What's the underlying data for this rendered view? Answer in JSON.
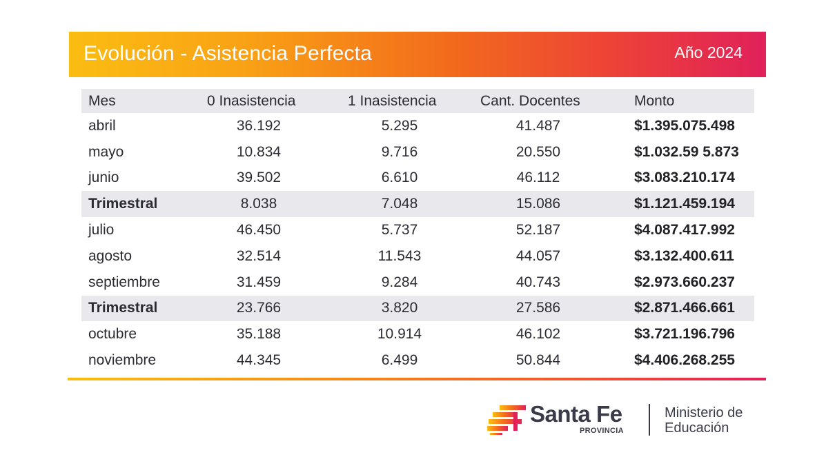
{
  "header": {
    "title": "Evolución - Asistencia Perfecta",
    "year": "Año 2024"
  },
  "table": {
    "columns": [
      "Mes",
      "0 Inasistencia",
      "1 Inasistencia",
      "Cant. Docentes",
      "Monto"
    ],
    "rows": [
      {
        "mes": "abril",
        "cero": "36.192",
        "uno": "5.295",
        "cant": "41.487",
        "monto": "$1.395.075.498",
        "shaded": false
      },
      {
        "mes": "mayo",
        "cero": "10.834",
        "uno": "9.716",
        "cant": "20.550",
        "monto": "$1.032.59 5.873",
        "shaded": false
      },
      {
        "mes": "junio",
        "cero": "39.502",
        "uno": "6.610",
        "cant": "46.112",
        "monto": "$3.083.210.174",
        "shaded": false
      },
      {
        "mes": "Trimestral",
        "cero": "8.038",
        "uno": "7.048",
        "cant": "15.086",
        "monto": "$1.121.459.194",
        "shaded": true
      },
      {
        "mes": "julio",
        "cero": "46.450",
        "uno": "5.737",
        "cant": "52.187",
        "monto": "$4.087.417.992",
        "shaded": false
      },
      {
        "mes": "agosto",
        "cero": "32.514",
        "uno": "11.543",
        "cant": "44.057",
        "monto": "$3.132.400.611",
        "shaded": false
      },
      {
        "mes": "septiembre",
        "cero": "31.459",
        "uno": "9.284",
        "cant": "40.743",
        "monto": "$2.973.660.237",
        "shaded": false
      },
      {
        "mes": "Trimestral",
        "cero": "23.766",
        "uno": "3.820",
        "cant": "27.586",
        "monto": "$2.871.466.661",
        "shaded": true
      },
      {
        "mes": "octubre",
        "cero": "35.188",
        "uno": "10.914",
        "cant": "46.102",
        "monto": "$3.721.196.796",
        "shaded": false
      },
      {
        "mes": "noviembre",
        "cero": "44.345",
        "uno": "6.499",
        "cant": "50.844",
        "monto": "$4.406.268.255",
        "shaded": false
      }
    ]
  },
  "logo": {
    "name": "Santa Fe",
    "sub": "PROVINCIA",
    "ministry_line1": "Ministerio de",
    "ministry_line2": "Educación",
    "icon": "santa-fe-logo-mark"
  },
  "colors": {
    "gradient_start": "#fbbd12",
    "gradient_mid": "#f26a1c",
    "gradient_end": "#e0215a",
    "shaded_row": "#e9e8ec",
    "text": "#2b2b33"
  }
}
